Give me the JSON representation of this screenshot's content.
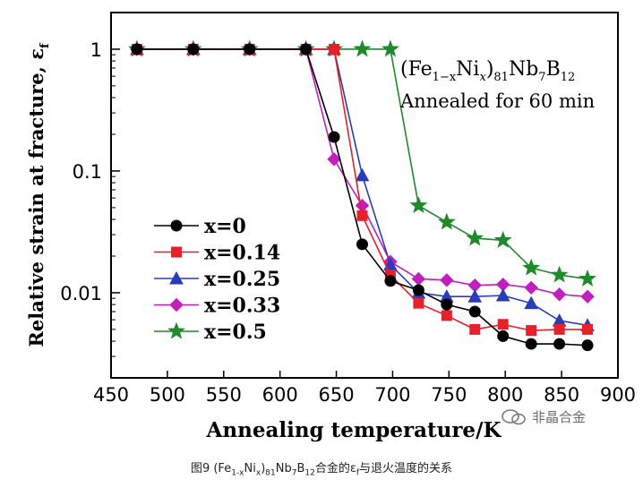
{
  "chart_data": {
    "type": "line",
    "title_line1": {
      "prefix": "(Fe",
      "sub1": "1−x",
      "mid": "Ni",
      "sub2": "x",
      "close": ")",
      "sub3": "81",
      "rest": "Nb",
      "sub4": "7",
      "tail": "B",
      "sub5": "12"
    },
    "title_line2": "Annealed for 60 min",
    "xlabel": "Annealing temperature/K",
    "ylabel": "Relative strain at fracture, ε",
    "ylabel_sub": "f",
    "xlim": [
      450,
      900
    ],
    "ylim": [
      0.002,
      2
    ],
    "y_scale": "log",
    "x_ticks": [
      450,
      500,
      550,
      600,
      650,
      700,
      750,
      800,
      850,
      900
    ],
    "y_ticks": [
      {
        "value": 1,
        "label": "1"
      },
      {
        "value": 0.1,
        "label": "0.1"
      },
      {
        "value": 0.01,
        "label": "0.01"
      }
    ],
    "legend_position": "left-middle",
    "series": [
      {
        "name": "x=0",
        "color": "#000000",
        "marker": "circle",
        "x": [
          473,
          523,
          573,
          623,
          648,
          673,
          698,
          723,
          748,
          773,
          798,
          823,
          848,
          873
        ],
        "y": [
          1,
          1,
          1,
          1,
          0.19,
          0.025,
          0.0125,
          0.0105,
          0.008,
          0.007,
          0.0044,
          0.0038,
          0.0038,
          0.0037
        ]
      },
      {
        "name": "x=0.14",
        "color": "#e8202a",
        "marker": "square",
        "x": [
          473,
          523,
          573,
          623,
          648,
          673,
          698,
          723,
          748,
          773,
          798,
          823,
          848,
          873
        ],
        "y": [
          1,
          1,
          1,
          1,
          1,
          0.043,
          0.014,
          0.0082,
          0.0065,
          0.005,
          0.0055,
          0.0049,
          0.005,
          0.005
        ]
      },
      {
        "name": "x=0.25",
        "color": "#2a3db8",
        "marker": "triangle",
        "x": [
          473,
          523,
          573,
          623,
          648,
          673,
          698,
          723,
          748,
          773,
          798,
          823,
          848,
          873
        ],
        "y": [
          1,
          1,
          1,
          1,
          1,
          0.092,
          0.017,
          0.01,
          0.0093,
          0.0093,
          0.0095,
          0.0082,
          0.0059,
          0.0054
        ]
      },
      {
        "name": "x=0.33",
        "color": "#c21fc0",
        "marker": "diamond",
        "x": [
          473,
          523,
          573,
          623,
          648,
          673,
          698,
          723,
          748,
          773,
          798,
          823,
          848,
          873
        ],
        "y": [
          1,
          1,
          1,
          1,
          0.125,
          0.052,
          0.018,
          0.013,
          0.0127,
          0.0115,
          0.0117,
          0.011,
          0.0097,
          0.0093
        ]
      },
      {
        "name": "x=0.5",
        "color": "#1f8a2b",
        "marker": "star",
        "x": [
          473,
          523,
          573,
          623,
          648,
          673,
          698,
          723,
          748,
          773,
          798,
          823,
          848,
          873
        ],
        "y": [
          1,
          1,
          1,
          1,
          1,
          1,
          1,
          0.052,
          0.038,
          0.028,
          0.027,
          0.016,
          0.014,
          0.013
        ]
      }
    ]
  },
  "watermark": {
    "text": "非晶合金",
    "icon": "wechat-icon"
  },
  "caption": {
    "prefix": "图9  (Fe",
    "sub1": "1-x",
    "mid": "Ni",
    "sub2": "x",
    "close": ")",
    "sub3": "81",
    "rest": "Nb",
    "sub4": "7",
    "tail": "B",
    "sub5": "12",
    "suffix": "合金的ε",
    "sub6": "f",
    "end": "与退火温度的关系"
  }
}
